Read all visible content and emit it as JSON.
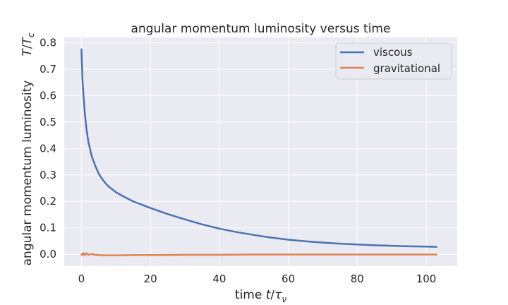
{
  "chart_data": {
    "type": "line",
    "title": "angular momentum luminosity versus time",
    "xlabel": "time t/τ_ν",
    "ylabel": "angular momentum luminosity",
    "ylabel_secondary": "T/T_c",
    "xlim": [
      -5,
      109
    ],
    "ylim": [
      -0.045,
      0.82
    ],
    "xticks": [
      0,
      20,
      40,
      60,
      80,
      100
    ],
    "yticks": [
      0.0,
      0.1,
      0.2,
      0.3,
      0.4,
      0.5,
      0.6,
      0.7,
      0.8
    ],
    "grid": true,
    "legend_position": "top-right",
    "series": [
      {
        "name": "viscous",
        "color": "#4c72b0",
        "x": [
          0,
          0.3,
          0.6,
          1,
          1.5,
          2,
          3,
          4,
          5,
          6,
          7,
          8,
          10,
          12,
          15,
          18,
          20,
          25,
          30,
          35,
          40,
          45,
          50,
          55,
          60,
          65,
          70,
          75,
          80,
          85,
          90,
          95,
          100,
          103
        ],
        "y": [
          0.775,
          0.66,
          0.6,
          0.53,
          0.47,
          0.425,
          0.37,
          0.335,
          0.305,
          0.285,
          0.268,
          0.255,
          0.235,
          0.22,
          0.2,
          0.185,
          0.175,
          0.152,
          0.132,
          0.113,
          0.097,
          0.084,
          0.073,
          0.063,
          0.055,
          0.049,
          0.044,
          0.04,
          0.037,
          0.034,
          0.032,
          0.03,
          0.029,
          0.028
        ]
      },
      {
        "name": "gravitational",
        "color": "#dd8452",
        "x": [
          0,
          0.3,
          0.6,
          1,
          1.5,
          2,
          3,
          4,
          5,
          7,
          10,
          15,
          20,
          30,
          40,
          50,
          60,
          70,
          80,
          90,
          100,
          103
        ],
        "y": [
          0.0,
          -0.004,
          0.005,
          -0.003,
          0.004,
          -0.002,
          0.001,
          -0.002,
          -0.003,
          -0.004,
          -0.004,
          -0.003,
          -0.003,
          -0.002,
          -0.002,
          -0.001,
          -0.001,
          -0.001,
          -0.001,
          -0.001,
          -0.001,
          -0.001
        ]
      }
    ]
  }
}
